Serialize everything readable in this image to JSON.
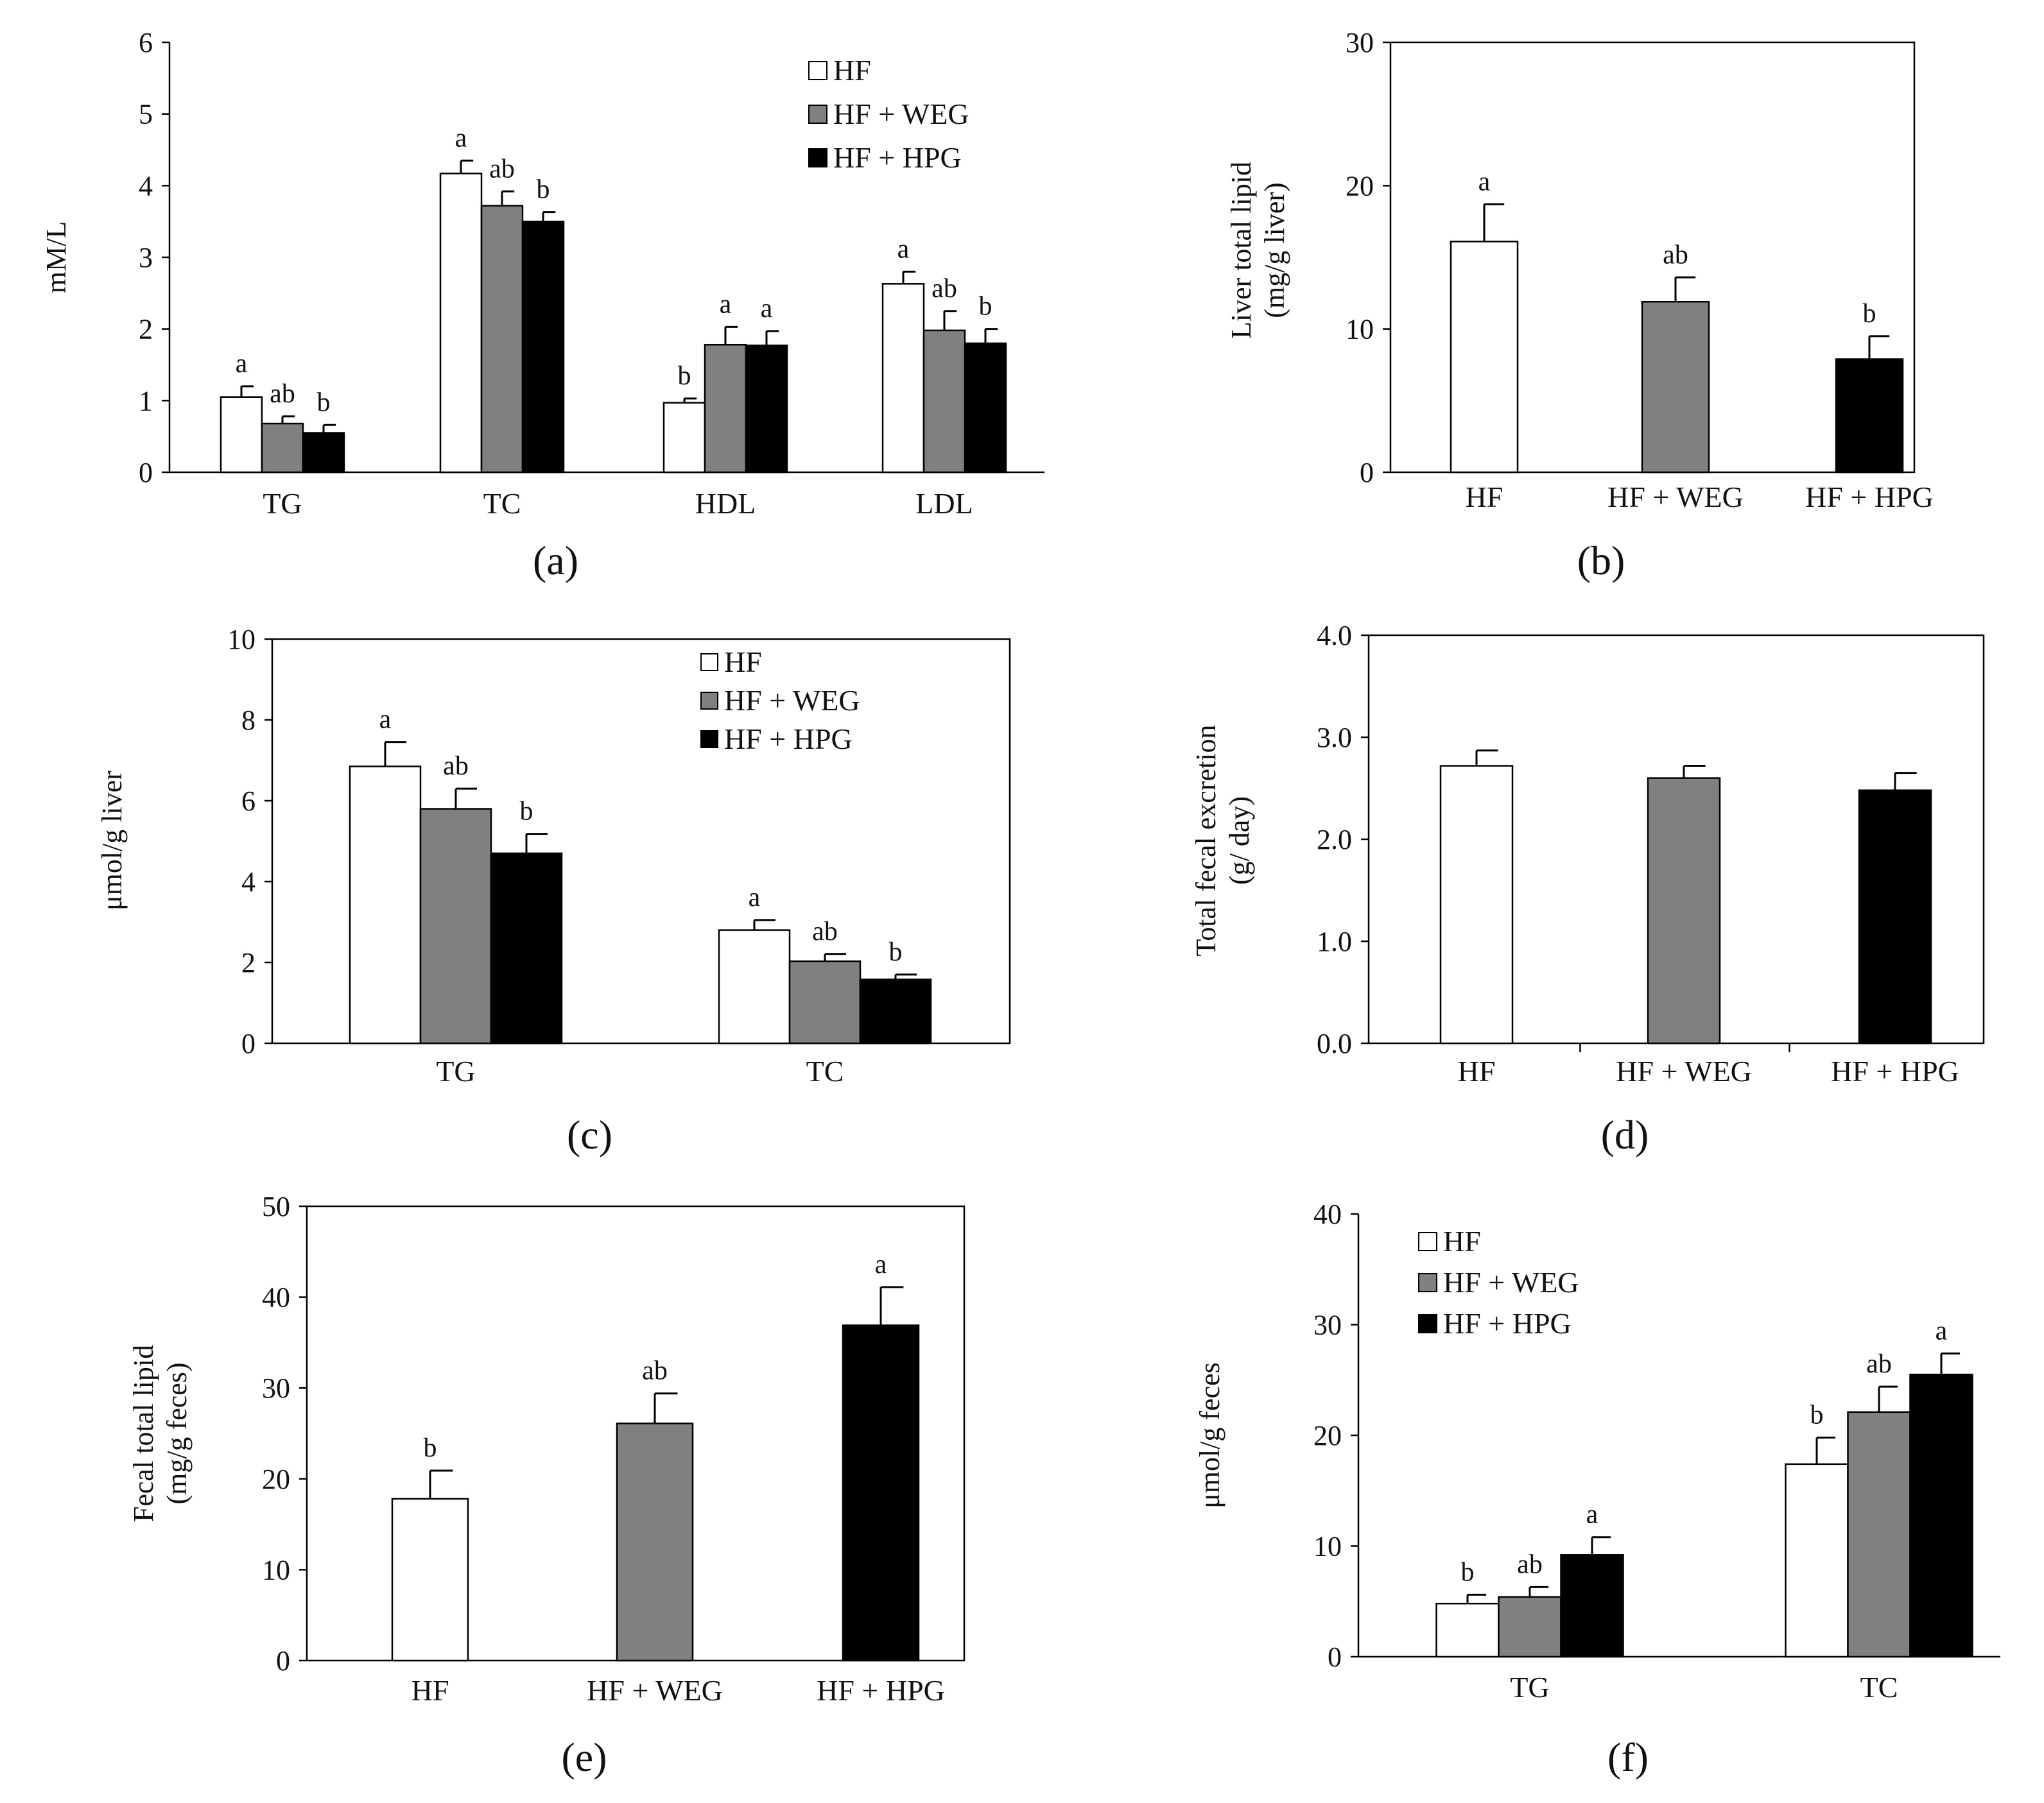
{
  "figure": {
    "colors": {
      "HF": "#ffffff",
      "HF + WEG": "#808080",
      "HF + HPG": "#000000",
      "axis": "#000000"
    }
  },
  "chart_data": [
    {
      "panel": "(a)",
      "type": "bar",
      "ylabel": "mM/L",
      "ylim": [
        0,
        6
      ],
      "yticks": [
        "0",
        "1",
        "2",
        "3",
        "4",
        "5",
        "6"
      ],
      "legend": {
        "position": "top-right",
        "entries": [
          "HF",
          "HF + WEG",
          "HF + HPG"
        ]
      },
      "categories": [
        "TG",
        "TC",
        "HDL",
        "LDL"
      ],
      "series": [
        {
          "name": "HF",
          "values": [
            1.05,
            4.17,
            0.97,
            2.63
          ],
          "errors": [
            0.15,
            0.18,
            0.06,
            0.17
          ],
          "labels": [
            "a",
            "a",
            "b",
            "a"
          ]
        },
        {
          "name": "HF + WEG",
          "values": [
            0.68,
            3.72,
            1.78,
            1.98
          ],
          "errors": [
            0.1,
            0.2,
            0.25,
            0.27
          ],
          "labels": [
            "ab",
            "ab",
            "a",
            "ab"
          ]
        },
        {
          "name": "HF + HPG",
          "values": [
            0.55,
            3.5,
            1.77,
            1.8
          ],
          "errors": [
            0.11,
            0.13,
            0.2,
            0.2
          ],
          "labels": [
            "b",
            "b",
            "a",
            "b"
          ]
        }
      ]
    },
    {
      "panel": "(b)",
      "type": "bar",
      "ylabel": [
        "Liver total lipid",
        "(mg/g liver)"
      ],
      "ylim": [
        0,
        30
      ],
      "yticks": [
        "0",
        "10",
        "20",
        "30"
      ],
      "legend": null,
      "categories": [
        "HF",
        "HF + WEG",
        "HF + HPG"
      ],
      "series": [
        {
          "name": "value",
          "values": [
            16.1,
            11.9,
            7.9
          ],
          "errors": [
            2.6,
            1.7,
            1.6
          ],
          "labels": [
            "a",
            "ab",
            "b"
          ]
        }
      ]
    },
    {
      "panel": "(c)",
      "type": "bar",
      "ylabel": "μmol/g liver",
      "ylim": [
        0,
        10
      ],
      "yticks": [
        "0",
        "2",
        "4",
        "6",
        "8",
        "10"
      ],
      "legend": {
        "position": "top-right",
        "entries": [
          "HF",
          "HF + WEG",
          "HF + HPG"
        ]
      },
      "categories": [
        "TG",
        "TC"
      ],
      "series": [
        {
          "name": "HF",
          "values": [
            6.85,
            2.8
          ],
          "errors": [
            0.6,
            0.25
          ],
          "labels": [
            "a",
            "a"
          ]
        },
        {
          "name": "HF + WEG",
          "values": [
            5.8,
            2.03
          ],
          "errors": [
            0.5,
            0.18
          ],
          "labels": [
            "ab",
            "ab"
          ]
        },
        {
          "name": "HF + HPG",
          "values": [
            4.7,
            1.58
          ],
          "errors": [
            0.48,
            0.12
          ],
          "labels": [
            "b",
            "b"
          ]
        }
      ]
    },
    {
      "panel": "(d)",
      "type": "bar",
      "ylabel": [
        "Total fecal excretion",
        "(g/ day)"
      ],
      "ylim": [
        0,
        4
      ],
      "yticks": [
        "0.0",
        "1.0",
        "2.0",
        "3.0",
        "4.0"
      ],
      "legend": null,
      "categories": [
        "HF",
        "HF + WEG",
        "HF + HPG"
      ],
      "series": [
        {
          "name": "value",
          "values": [
            2.72,
            2.6,
            2.48
          ],
          "errors": [
            0.15,
            0.12,
            0.17
          ],
          "labels": [
            "",
            "",
            ""
          ]
        }
      ]
    },
    {
      "panel": "(e)",
      "type": "bar",
      "ylabel": [
        "Fecal total lipid",
        "(mg/g feces)"
      ],
      "ylim": [
        0,
        50
      ],
      "yticks": [
        "0",
        "10",
        "20",
        "30",
        "40",
        "50"
      ],
      "legend": null,
      "categories": [
        "HF",
        "HF + WEG",
        "HF + HPG"
      ],
      "series": [
        {
          "name": "value",
          "values": [
            17.8,
            26.1,
            36.9
          ],
          "errors": [
            3.1,
            3.3,
            4.2
          ],
          "labels": [
            "b",
            "ab",
            "a"
          ]
        }
      ]
    },
    {
      "panel": "(f)",
      "type": "bar",
      "ylabel": "μmol/g feces",
      "ylim": [
        0,
        40
      ],
      "yticks": [
        "0",
        "10",
        "20",
        "30",
        "40"
      ],
      "legend": {
        "position": "top-left",
        "entries": [
          "HF",
          "HF + WEG",
          "HF + HPG"
        ]
      },
      "categories": [
        "TG",
        "TC"
      ],
      "series": [
        {
          "name": "HF",
          "values": [
            4.8,
            17.4
          ],
          "errors": [
            0.8,
            2.4
          ],
          "labels": [
            "b",
            "b"
          ]
        },
        {
          "name": "HF + WEG",
          "values": [
            5.4,
            22.1
          ],
          "errors": [
            0.9,
            2.3
          ],
          "labels": [
            "ab",
            "ab"
          ]
        },
        {
          "name": "HF + HPG",
          "values": [
            9.2,
            25.5
          ],
          "errors": [
            1.6,
            1.9
          ],
          "labels": [
            "a",
            "a"
          ]
        }
      ]
    }
  ]
}
